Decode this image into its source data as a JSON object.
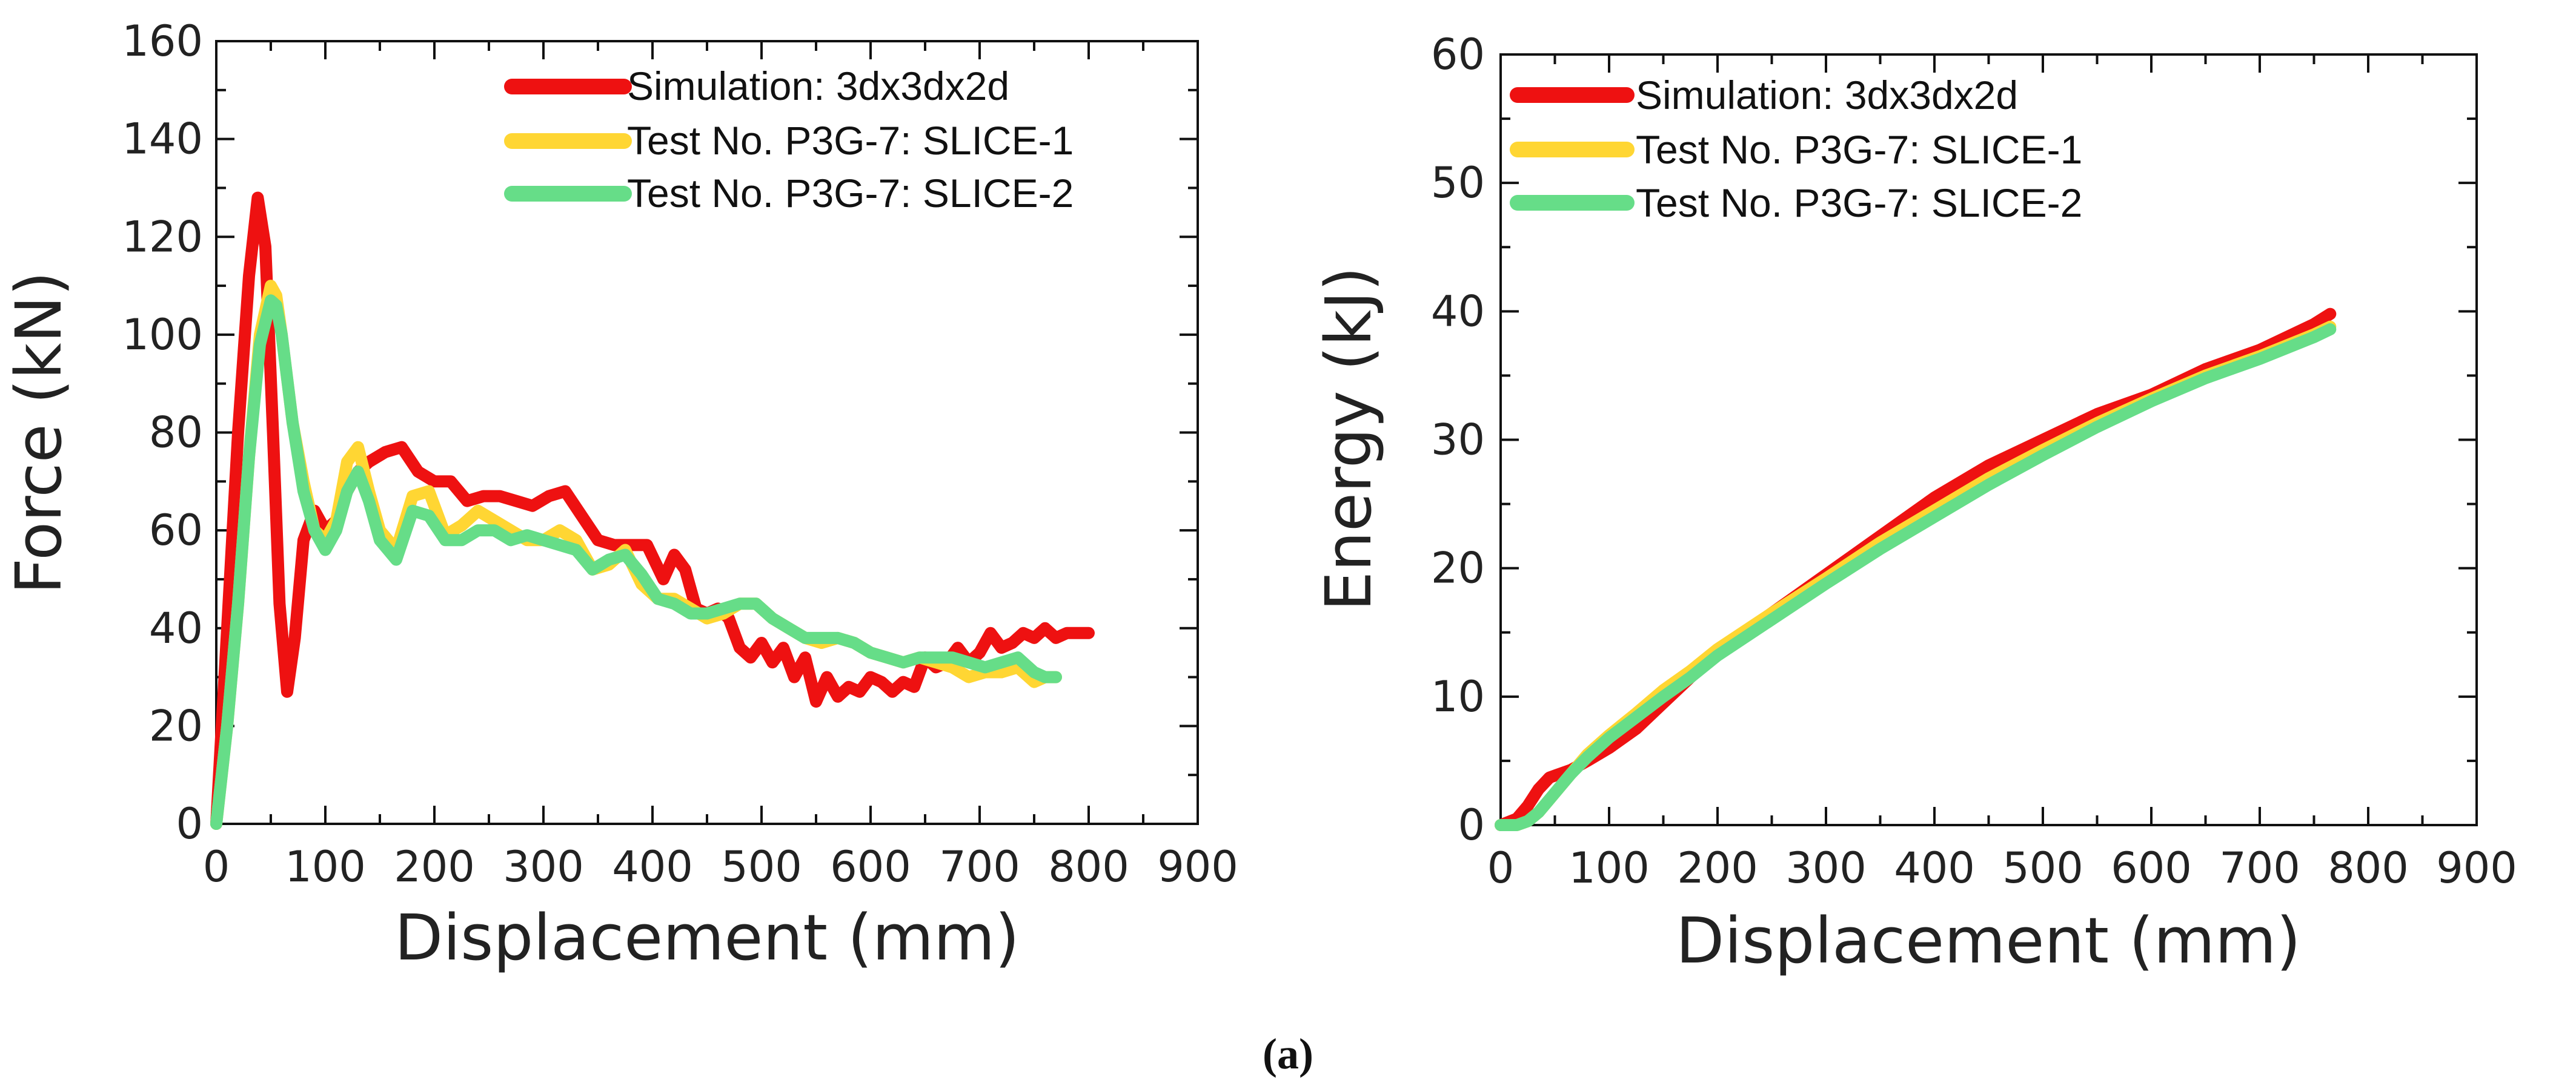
{
  "figure_caption": "(a)",
  "chart_data": [
    {
      "type": "line",
      "title": "",
      "xlabel": "Displacement (mm)",
      "ylabel": "Force (kN)",
      "xlim": [
        0,
        900
      ],
      "ylim": [
        0,
        160
      ],
      "xticks": [
        0,
        100,
        200,
        300,
        400,
        500,
        600,
        700,
        800,
        900
      ],
      "yticks": [
        0,
        20,
        40,
        60,
        80,
        100,
        120,
        140,
        160
      ],
      "legend_position": "top-right",
      "series": [
        {
          "name": "Simulation: 3dx3dx2d",
          "color": "#ee1111",
          "x": [
            0,
            10,
            20,
            30,
            38,
            45,
            52,
            58,
            65,
            72,
            80,
            90,
            100,
            110,
            120,
            130,
            140,
            155,
            170,
            185,
            200,
            215,
            230,
            245,
            260,
            275,
            290,
            305,
            320,
            335,
            350,
            365,
            380,
            395,
            410,
            420,
            430,
            440,
            450,
            460,
            470,
            480,
            490,
            500,
            510,
            520,
            530,
            540,
            550,
            560,
            570,
            580,
            590,
            600,
            610,
            620,
            630,
            640,
            650,
            660,
            670,
            680,
            690,
            700,
            710,
            720,
            730,
            740,
            750,
            760,
            770,
            780,
            790,
            800
          ],
          "y": [
            0,
            40,
            80,
            112,
            128,
            118,
            80,
            45,
            27,
            38,
            58,
            64,
            60,
            62,
            68,
            72,
            74,
            76,
            77,
            72,
            70,
            70,
            66,
            67,
            67,
            66,
            65,
            67,
            68,
            63,
            58,
            57,
            57,
            57,
            50,
            55,
            52,
            44,
            43,
            44,
            42,
            36,
            34,
            37,
            33,
            36,
            30,
            34,
            25,
            30,
            26,
            28,
            27,
            30,
            29,
            27,
            29,
            28,
            34,
            32,
            33,
            36,
            33,
            35,
            39,
            36,
            37,
            39,
            38,
            40,
            38,
            39,
            39,
            39
          ]
        },
        {
          "name": "Test No. P3G-7: SLICE-1",
          "color": "#ffd633",
          "x": [
            0,
            10,
            20,
            30,
            40,
            50,
            55,
            60,
            70,
            80,
            90,
            100,
            110,
            120,
            130,
            140,
            150,
            165,
            180,
            195,
            210,
            225,
            240,
            255,
            270,
            285,
            300,
            315,
            330,
            345,
            360,
            375,
            390,
            405,
            420,
            435,
            450,
            465,
            480,
            495,
            510,
            525,
            540,
            555,
            570,
            585,
            600,
            615,
            630,
            645,
            660,
            675,
            690,
            705,
            720,
            735,
            750,
            760,
            770
          ],
          "y": [
            0,
            20,
            45,
            75,
            100,
            110,
            108,
            100,
            82,
            70,
            60,
            58,
            62,
            74,
            77,
            68,
            60,
            56,
            67,
            68,
            59,
            61,
            64,
            62,
            60,
            58,
            58,
            60,
            58,
            52,
            53,
            56,
            49,
            46,
            46,
            44,
            42,
            43,
            45,
            45,
            42,
            40,
            38,
            37,
            38,
            37,
            35,
            34,
            33,
            34,
            33,
            32,
            30,
            31,
            31,
            32,
            29,
            30,
            30
          ]
        },
        {
          "name": "Test No. P3G-7: SLICE-2",
          "color": "#66dd88",
          "x": [
            0,
            10,
            20,
            30,
            40,
            50,
            55,
            60,
            70,
            80,
            90,
            100,
            110,
            120,
            130,
            140,
            150,
            165,
            180,
            195,
            210,
            225,
            240,
            255,
            270,
            285,
            300,
            315,
            330,
            345,
            360,
            375,
            390,
            405,
            420,
            435,
            450,
            465,
            480,
            495,
            510,
            525,
            540,
            555,
            570,
            585,
            600,
            615,
            630,
            645,
            660,
            675,
            690,
            705,
            720,
            735,
            750,
            760,
            770
          ],
          "y": [
            0,
            20,
            45,
            75,
            98,
            107,
            106,
            100,
            82,
            68,
            60,
            56,
            60,
            68,
            72,
            66,
            58,
            54,
            64,
            63,
            58,
            58,
            60,
            60,
            58,
            59,
            58,
            57,
            56,
            52,
            54,
            55,
            51,
            46,
            45,
            43,
            43,
            44,
            45,
            45,
            42,
            40,
            38,
            38,
            38,
            37,
            35,
            34,
            33,
            34,
            34,
            34,
            33,
            32,
            33,
            34,
            31,
            30,
            30
          ]
        }
      ]
    },
    {
      "type": "line",
      "title": "",
      "xlabel": "Displacement (mm)",
      "ylabel": "Energy (kJ)",
      "xlim": [
        0,
        900
      ],
      "ylim": [
        0,
        60
      ],
      "xticks": [
        0,
        100,
        200,
        300,
        400,
        500,
        600,
        700,
        800,
        900
      ],
      "yticks": [
        0,
        10,
        20,
        30,
        40,
        50,
        60
      ],
      "legend_position": "top-left",
      "series": [
        {
          "name": "Simulation: 3dx3dx2d",
          "color": "#ee1111",
          "x": [
            0,
            15,
            25,
            35,
            45,
            55,
            65,
            80,
            100,
            125,
            150,
            175,
            200,
            250,
            300,
            350,
            400,
            450,
            500,
            550,
            600,
            650,
            700,
            750,
            765
          ],
          "y": [
            0,
            0.5,
            1.5,
            2.8,
            3.7,
            4.0,
            4.3,
            5.0,
            6.0,
            7.5,
            9.5,
            11.5,
            13.5,
            16.5,
            19.5,
            22.5,
            25.5,
            28.0,
            30.0,
            32.0,
            33.5,
            35.5,
            37.0,
            39.0,
            39.8
          ]
        },
        {
          "name": "Test No. P3G-7: SLICE-1",
          "color": "#ffd633",
          "x": [
            0,
            15,
            25,
            35,
            45,
            55,
            65,
            80,
            100,
            125,
            150,
            175,
            200,
            250,
            300,
            350,
            400,
            450,
            500,
            550,
            600,
            650,
            700,
            750,
            765
          ],
          "y": [
            0,
            0,
            0.3,
            1.0,
            2.0,
            3.0,
            4.0,
            5.5,
            7.0,
            8.7,
            10.5,
            12.0,
            13.7,
            16.5,
            19.2,
            22.0,
            24.5,
            27.0,
            29.2,
            31.3,
            33.2,
            35.0,
            36.5,
            38.2,
            38.8
          ]
        },
        {
          "name": "Test No. P3G-7: SLICE-2",
          "color": "#66dd88",
          "x": [
            0,
            15,
            25,
            35,
            45,
            55,
            65,
            80,
            100,
            125,
            150,
            175,
            200,
            250,
            300,
            350,
            400,
            450,
            500,
            550,
            600,
            650,
            700,
            750,
            765
          ],
          "y": [
            0,
            0,
            0.3,
            1.0,
            2.0,
            3.0,
            4.0,
            5.3,
            6.8,
            8.4,
            10.0,
            11.5,
            13.2,
            16.0,
            18.8,
            21.5,
            24.0,
            26.5,
            28.8,
            31.0,
            33.0,
            34.8,
            36.3,
            38.0,
            38.6
          ]
        }
      ]
    }
  ]
}
